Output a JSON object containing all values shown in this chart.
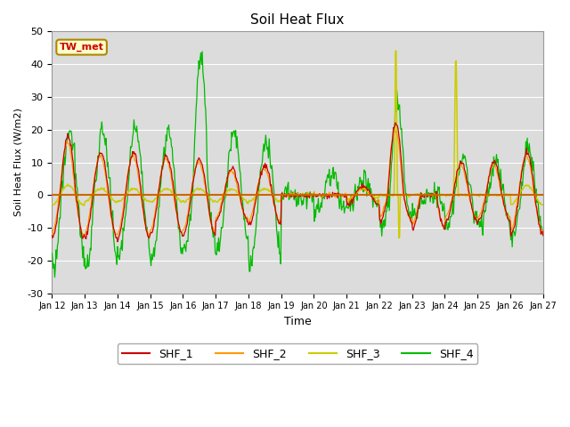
{
  "title": "Soil Heat Flux",
  "xlabel": "Time",
  "ylabel": "Soil Heat Flux (W/m2)",
  "ylim": [
    -30,
    50
  ],
  "xlim": [
    0,
    15
  ],
  "bg_color": "#dcdcdc",
  "hline_color": "#cc6600",
  "hline_y": 0,
  "annotation_text": "TW_met",
  "annotation_color": "#cc0000",
  "annotation_bg": "#ffffcc",
  "annotation_border": "#aa8800",
  "series_colors": {
    "SHF_1": "#cc0000",
    "SHF_2": "#ff9900",
    "SHF_3": "#cccc00",
    "SHF_4": "#00bb00"
  },
  "xtick_labels": [
    "Jan 12",
    "Jan 13",
    "Jan 14",
    "Jan 15",
    "Jan 16",
    "Jan 17",
    "Jan 18",
    "Jan 19",
    "Jan 20",
    "Jan 21",
    "Jan 22",
    "Jan 23",
    "Jan 24",
    "Jan 25",
    "Jan 26",
    "Jan 27"
  ],
  "ytick_values": [
    -30,
    -20,
    -10,
    0,
    10,
    20,
    30,
    40,
    50
  ],
  "legend_entries": [
    "SHF_1",
    "SHF_2",
    "SHF_3",
    "SHF_4"
  ]
}
